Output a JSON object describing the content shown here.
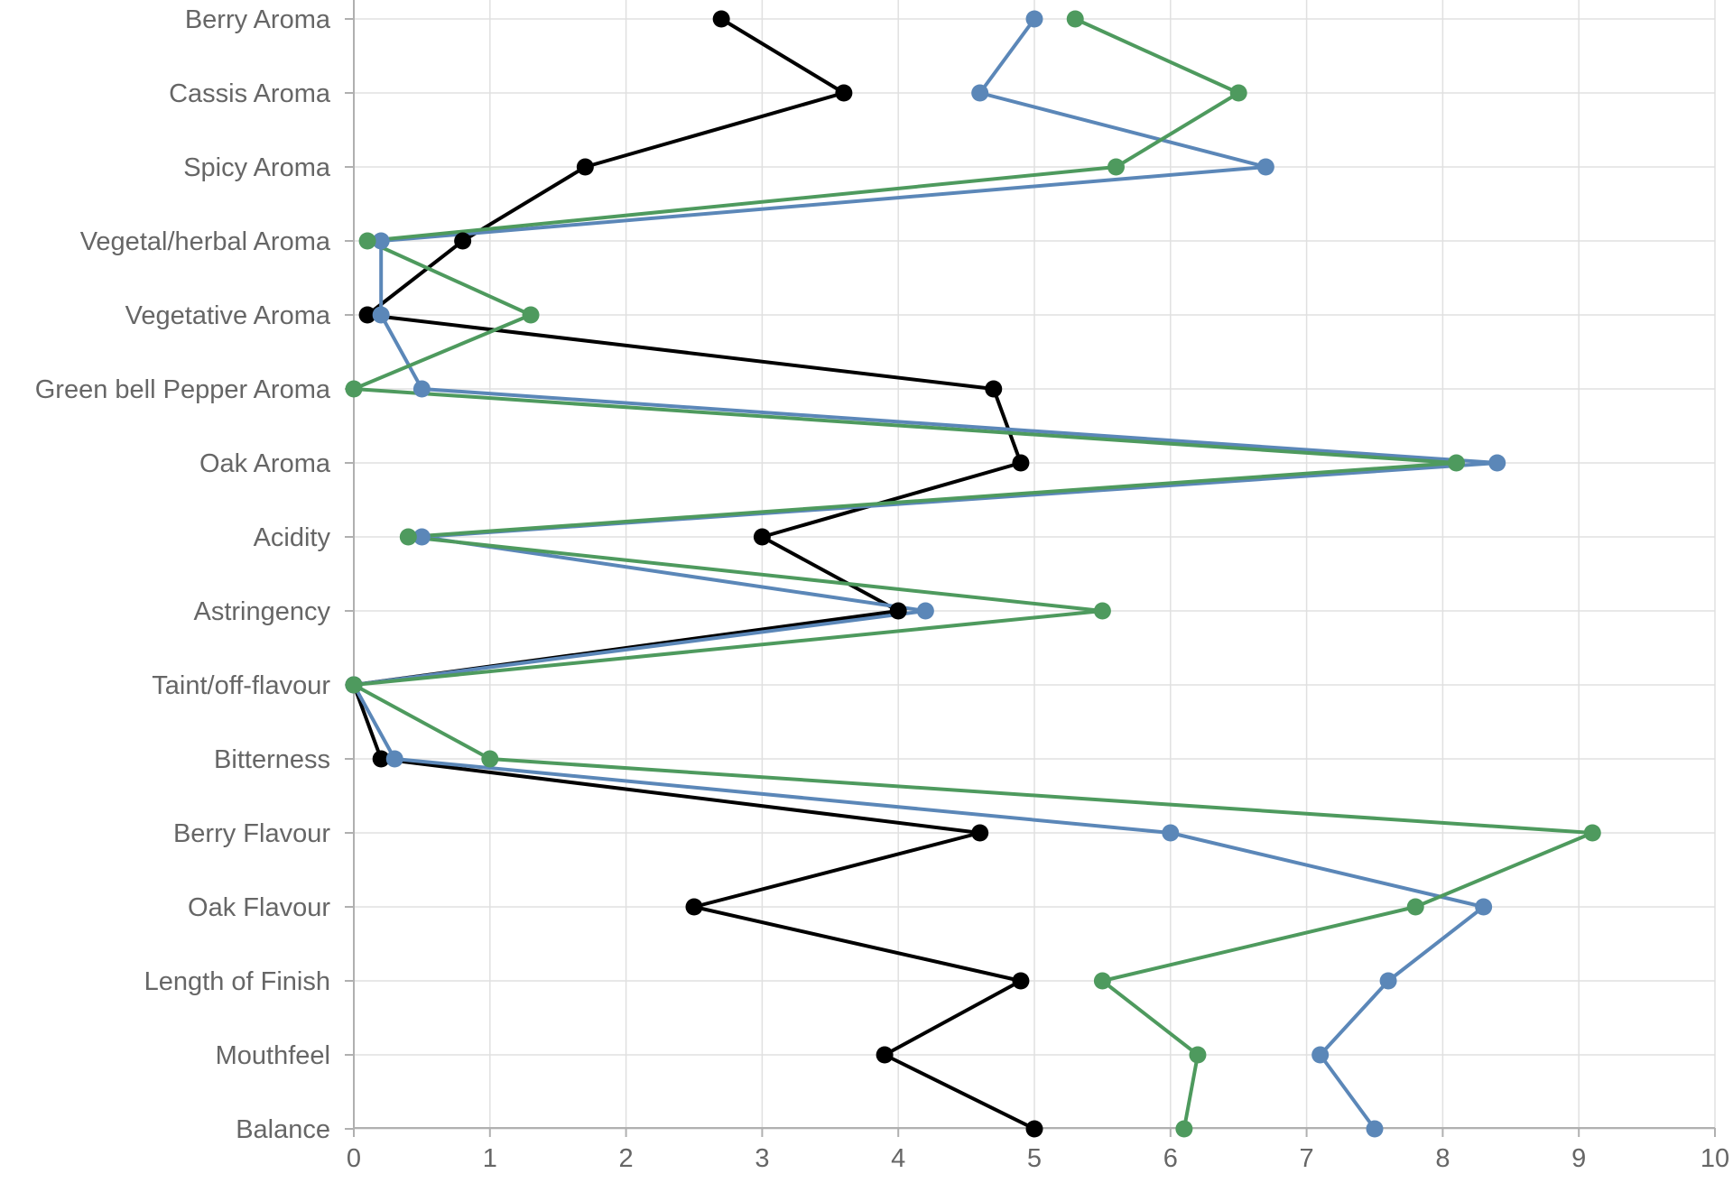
{
  "chart_data": {
    "type": "line",
    "orientation": "horizontal",
    "title": "",
    "xlabel": "",
    "ylabel": "",
    "xlim": [
      0,
      10
    ],
    "x_ticks": [
      "0",
      "1",
      "2",
      "3",
      "4",
      "5",
      "6",
      "7",
      "8",
      "9",
      "10"
    ],
    "grid": true,
    "legend": "none",
    "categories": [
      "Berry Aroma",
      "Cassis Aroma",
      "Spicy Aroma",
      "Vegetal/herbal Aroma",
      "Vegetative Aroma",
      "Green bell Pepper Aroma",
      "Oak Aroma",
      "Acidity",
      "Astringency",
      "Taint/off-flavour",
      "Bitterness",
      "Berry Flavour",
      "Oak Flavour",
      "Length of Finish",
      "Mouthfeel",
      "Balance"
    ],
    "series": [
      {
        "color": "#000000",
        "values": [
          2.7,
          3.6,
          1.7,
          0.8,
          0.1,
          4.7,
          4.9,
          3.0,
          4.0,
          0.0,
          0.2,
          4.6,
          2.5,
          4.9,
          3.9,
          5.0
        ]
      },
      {
        "color": "#5b87b8",
        "values": [
          5.0,
          4.6,
          6.7,
          0.2,
          0.2,
          0.5,
          8.4,
          0.5,
          4.2,
          0.0,
          0.3,
          6.0,
          8.3,
          7.6,
          7.1,
          7.5
        ]
      },
      {
        "color": "#4e9a5e",
        "values": [
          5.3,
          6.5,
          5.6,
          0.1,
          1.3,
          0.0,
          8.1,
          0.4,
          5.5,
          0.0,
          1.0,
          9.1,
          7.8,
          5.5,
          6.2,
          6.1
        ]
      }
    ]
  }
}
